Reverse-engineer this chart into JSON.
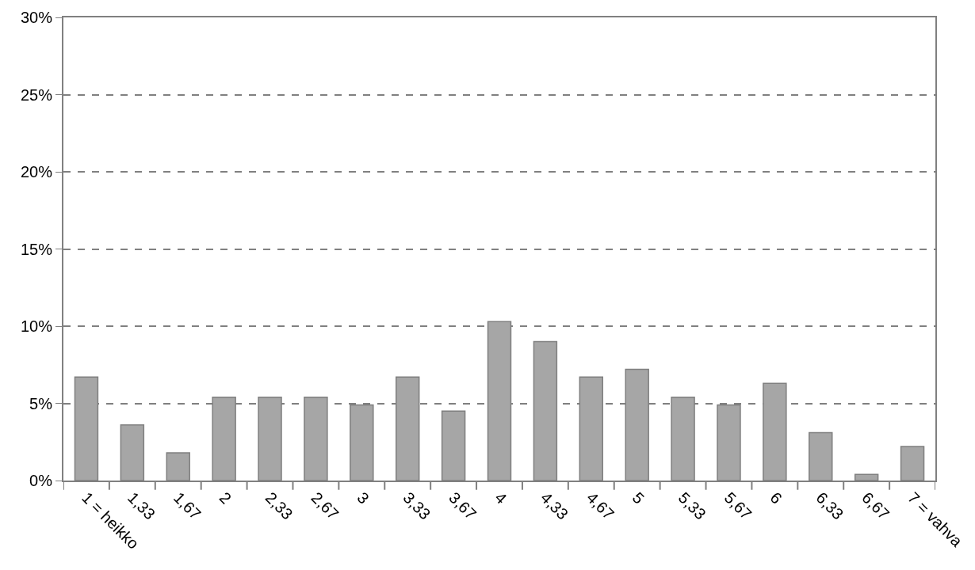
{
  "chart_data": {
    "type": "bar",
    "categories": [
      "1 = heikko",
      "1,33",
      "1,67",
      "2",
      "2,33",
      "2,67",
      "3",
      "3,33",
      "3,67",
      "4",
      "4,33",
      "4,67",
      "5",
      "5,33",
      "5,67",
      "6",
      "6,33",
      "6,67",
      "7 = vahva"
    ],
    "values": [
      6.7,
      3.6,
      1.8,
      5.4,
      5.4,
      5.4,
      4.9,
      6.7,
      4.5,
      10.3,
      9.0,
      6.7,
      7.2,
      5.4,
      4.9,
      6.3,
      3.1,
      0.4,
      2.2
    ],
    "color": "#a6a6a6",
    "ylim": [
      0,
      30
    ],
    "yticks": [
      {
        "value": 0,
        "label": "0%"
      },
      {
        "value": 5,
        "label": "5%"
      },
      {
        "value": 10,
        "label": "10%"
      },
      {
        "value": 15,
        "label": "15%"
      },
      {
        "value": 20,
        "label": "20%"
      },
      {
        "value": 25,
        "label": "25%"
      },
      {
        "value": 30,
        "label": "30%"
      }
    ],
    "grid": "y"
  }
}
